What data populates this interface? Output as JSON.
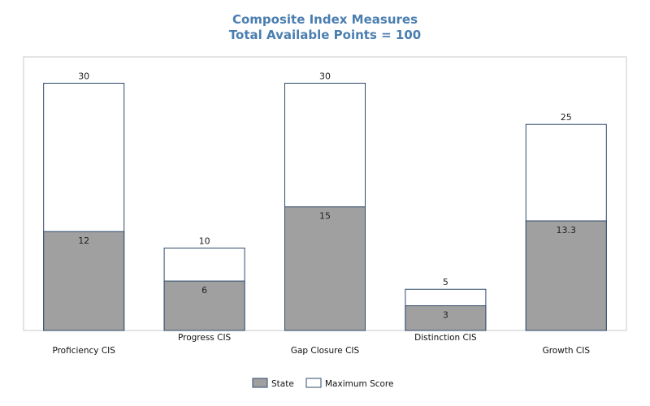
{
  "chart_data": {
    "type": "bar",
    "title": "Composite Index Measures",
    "subtitle": "Total Available Points = 100",
    "categories": [
      "Proficiency CIS",
      "Progress CIS",
      "Gap Closure CIS",
      "Distinction CIS",
      "Growth CIS"
    ],
    "series": [
      {
        "name": "State",
        "values": [
          12,
          6,
          15,
          3,
          13.3
        ],
        "color": "#a0a0a0"
      },
      {
        "name": "Maximum Score",
        "values": [
          30,
          10,
          30,
          5,
          25
        ],
        "color": "#ffffff"
      }
    ],
    "ylim": [
      0,
      33.2
    ],
    "grid": false,
    "legend_position": "bottom-center",
    "bar_stroke_color": "#2e4a6b",
    "plot_border_color": "#c8c8c8"
  }
}
